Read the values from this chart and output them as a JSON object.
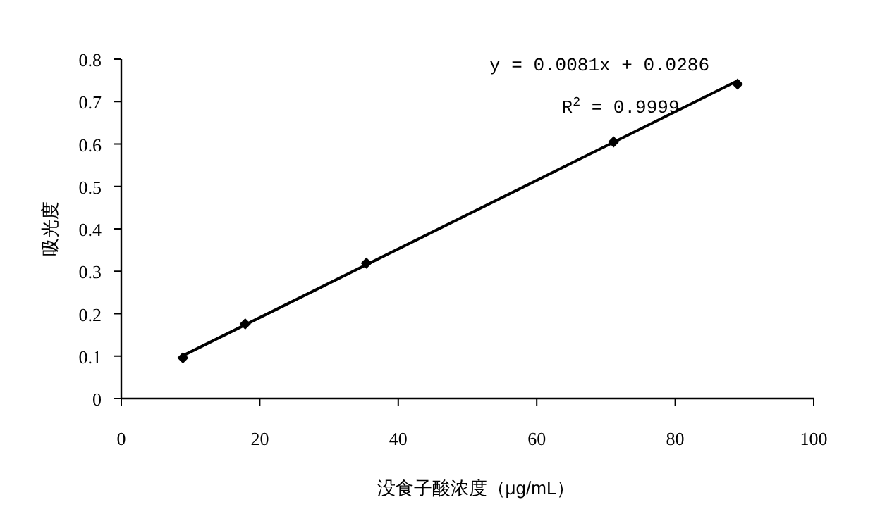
{
  "chart_data": {
    "type": "scatter",
    "xlabel": "没食子酸浓度（μg/mL）",
    "ylabel": "吸光度",
    "xlim": [
      0,
      100
    ],
    "xticks": [
      0,
      20,
      40,
      60,
      80,
      100
    ],
    "ylim": [
      0,
      0.8
    ],
    "yticks": [
      0,
      0.1,
      0.2,
      0.3,
      0.4,
      0.5,
      0.6,
      0.7,
      0.8
    ],
    "grid": false,
    "series": [
      {
        "marker": "diamond",
        "color": "#000000",
        "x": [
          8.9,
          17.9,
          35.4,
          71.1,
          89.0
        ],
        "values": [
          0.096,
          0.176,
          0.319,
          0.605,
          0.741
        ]
      },
      {
        "type": "line",
        "line_style": "solid",
        "color": "#000000",
        "x": [
          8.9,
          89.0
        ],
        "values": [
          0.101,
          0.749
        ]
      }
    ],
    "annotations": [
      "y = 0.0081x + 0.0286",
      "R$^{2}$ = 0.9999"
    ]
  }
}
